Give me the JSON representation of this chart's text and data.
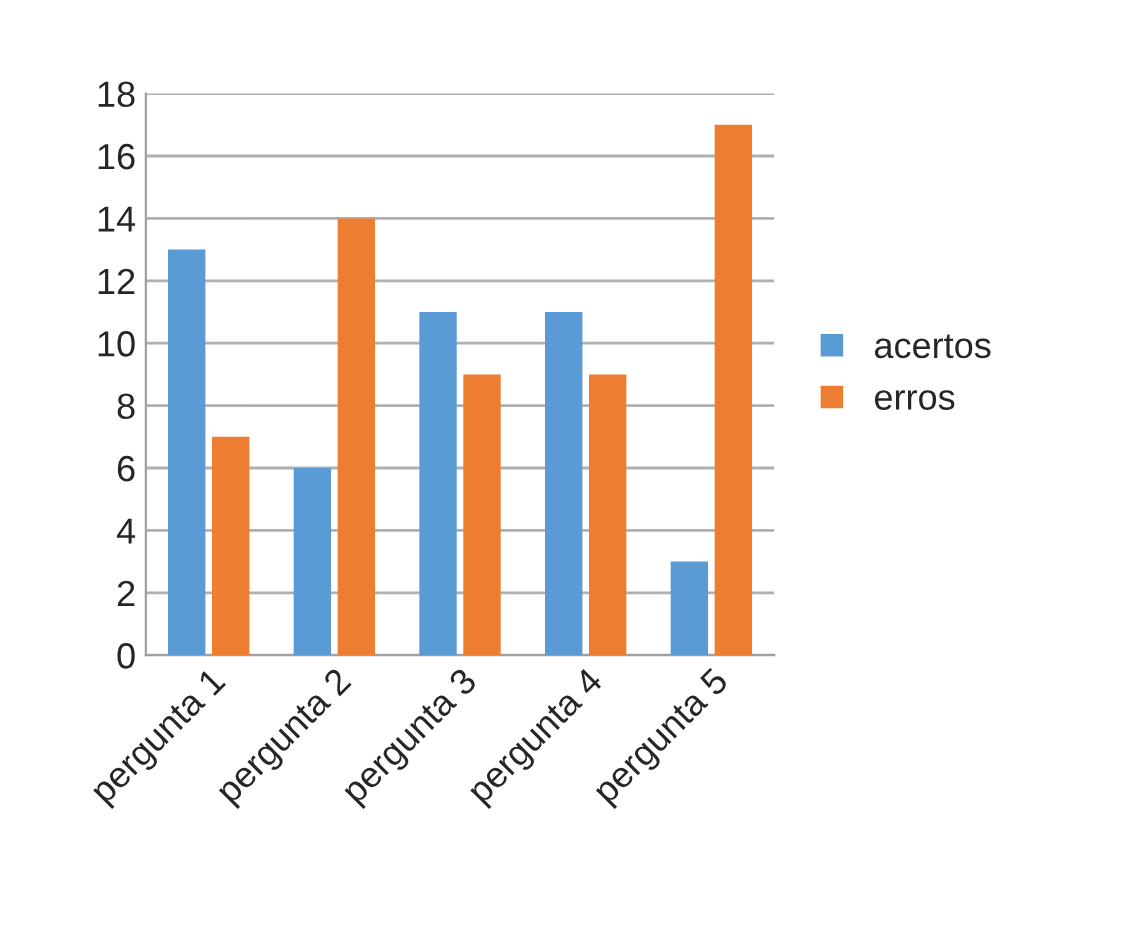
{
  "chart_data": {
    "type": "bar",
    "categories": [
      "pergunta 1",
      "pergunta 2",
      "pergunta 3",
      "pergunta 4",
      "pergunta 5"
    ],
    "series": [
      {
        "name": "acertos",
        "color": "#5b9bd5",
        "values": [
          13,
          6,
          11,
          11,
          3
        ]
      },
      {
        "name": "erros",
        "color": "#ed7d31",
        "values": [
          7,
          14,
          9,
          9,
          17
        ]
      }
    ],
    "ylim": [
      0,
      18
    ],
    "yticks": [
      0,
      2,
      4,
      6,
      8,
      10,
      12,
      14,
      16,
      18
    ],
    "grid": "y",
    "legend": "right"
  }
}
